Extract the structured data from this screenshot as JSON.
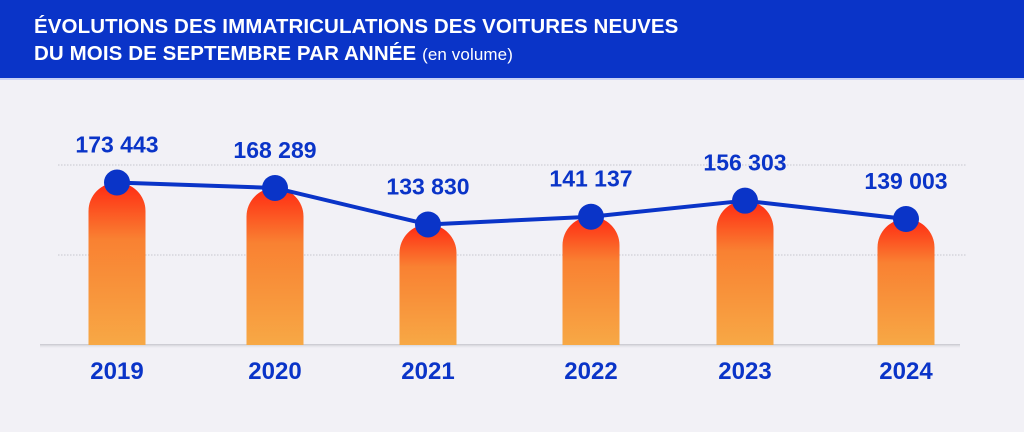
{
  "header": {
    "title_line1": "ÉVOLUTIONS DES IMMATRICULATIONS DES VOITURES NEUVES",
    "title_line2": "DU MOIS DE SEPTEMBRE PAR ANNÉE",
    "title_unit": "(en volume)"
  },
  "colors": {
    "header_bg": "#0A34C8",
    "line": "#0A34C8",
    "bar_top": "#FF2A12",
    "bar_mid": "#F98132",
    "bar_bottom": "#F7A845",
    "background": "#F2F1F6"
  },
  "chart_data": {
    "type": "bar",
    "title": "ÉVOLUTIONS DES IMMATRICULATIONS DES VOITURES NEUVES DU MOIS DE SEPTEMBRE PAR ANNÉE (en volume)",
    "xlabel": "",
    "ylabel": "",
    "categories": [
      "2019",
      "2020",
      "2021",
      "2022",
      "2023",
      "2024"
    ],
    "values": [
      173443,
      168289,
      133830,
      141137,
      156303,
      139003
    ],
    "value_labels": [
      "173 443",
      "168 289",
      "133 830",
      "141 137",
      "156 303",
      "139 003"
    ],
    "overlay": "line with markers connecting bar tops",
    "ylim": [
      20000,
      190000
    ],
    "gridlines": [
      190000,
      105000
    ],
    "grid": true,
    "legend": "none"
  }
}
